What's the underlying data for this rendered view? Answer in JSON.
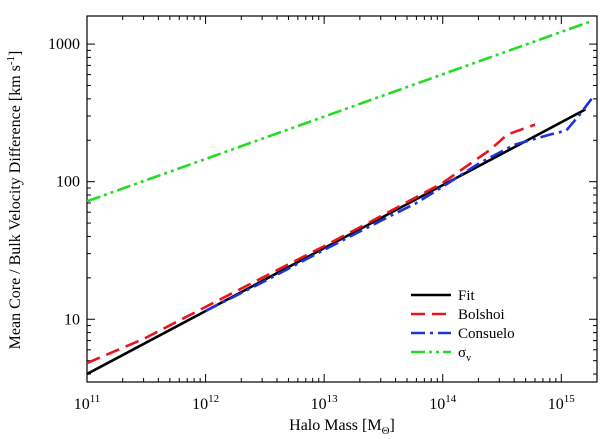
{
  "chart_data": {
    "type": "line",
    "xlabel": "Halo Mass [M",
    "xlabel_sub": "Θ",
    "xlabel_end": "]",
    "ylabel": "Mean Core / Bulk Velocity Difference [km s",
    "ylabel_sup": "-1",
    "ylabel_end": "]",
    "x_scale": "log",
    "y_scale": "log",
    "xlim": [
      100000000000.0,
      2000000000000000.0
    ],
    "ylim": [
      3.5,
      1600
    ],
    "grid": false,
    "legend_position": "bottom-right",
    "x_ticks": [
      {
        "value": 100000000000.0,
        "base": "10",
        "exp": "11"
      },
      {
        "value": 1000000000000.0,
        "base": "10",
        "exp": "12"
      },
      {
        "value": 10000000000000.0,
        "base": "10",
        "exp": "13"
      },
      {
        "value": 100000000000000.0,
        "base": "10",
        "exp": "14"
      },
      {
        "value": 1000000000000000.0,
        "base": "10",
        "exp": "15"
      }
    ],
    "y_ticks": [
      {
        "value": 10,
        "label": "10"
      },
      {
        "value": 100,
        "label": "100"
      },
      {
        "value": 1000,
        "label": "1000"
      }
    ],
    "series": [
      {
        "name": "Fit",
        "color": "#000000",
        "dash": "solid",
        "x": [
          100000000000.0,
          1600000000000000.0
        ],
        "y": [
          4.0,
          335
        ]
      },
      {
        "name": "Bolshoi",
        "color": "#e8141e",
        "dash": "dashed",
        "x": [
          100000000000.0,
          300000000000.0,
          1000000000000.0,
          3000000000000.0,
          10000000000000.0,
          30000000000000.0,
          100000000000000.0,
          150000000000000.0,
          250000000000000.0,
          350000000000000.0,
          600000000000000.0
        ],
        "y": [
          4.8,
          7.2,
          12.3,
          20,
          34,
          56,
          98,
          125,
          170,
          220,
          260
        ]
      },
      {
        "name": "Consuelo",
        "color": "#1e32dc",
        "dash": "dashdot",
        "x": [
          1000000000000.0,
          3000000000000.0,
          10000000000000.0,
          30000000000000.0,
          60000000000000.0,
          100000000000000.0,
          200000000000000.0,
          400000000000000.0,
          800000000000000.0,
          1100000000000000.0,
          1400000000000000.0,
          1800000000000000.0
        ],
        "y": [
          11.5,
          18.5,
          32,
          52,
          70,
          92,
          135,
          185,
          220,
          235,
          300,
          400
        ]
      },
      {
        "name": "σ",
        "name_sub": "v",
        "color": "#22dd22",
        "dash": "dashdotdot",
        "x": [
          100000000000.0,
          1800000000000000.0
        ],
        "y": [
          72,
          1470
        ]
      }
    ]
  }
}
